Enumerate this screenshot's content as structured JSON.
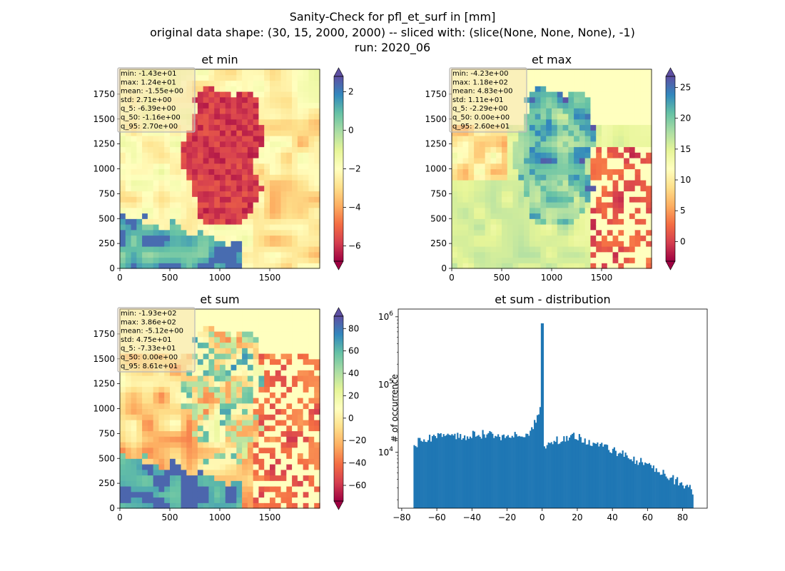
{
  "suptitle": {
    "line1": "Sanity-Check for pfl_et_surf in [mm]",
    "line2": "original data shape: (30, 15, 2000, 2000) -- sliced with: (slice(None, None, None), -1)",
    "line3": "run: 2020_06"
  },
  "chart_data": [
    {
      "type": "heatmap",
      "title": "et min",
      "xlim": [
        0,
        2000
      ],
      "ylim": [
        0,
        2000
      ],
      "x_ticks": [
        0,
        500,
        1000,
        1500
      ],
      "y_ticks": [
        0,
        250,
        500,
        750,
        1000,
        1250,
        1500,
        1750
      ],
      "colormap": "Spectral",
      "colorbar": {
        "vmin": -6.8,
        "vmax": 2.8,
        "ticks": [
          2,
          0,
          -2,
          -4,
          -6
        ],
        "extend": "both"
      },
      "stats": [
        "min: -1.43e+01",
        "max: 1.24e+01",
        "mean: -1.55e+00",
        "std: 2.71e+00",
        "q_5: -6.39e+00",
        "q_50: -1.16e+00",
        "q_95: 2.70e+00"
      ]
    },
    {
      "type": "heatmap",
      "title": "et max",
      "xlim": [
        0,
        2000
      ],
      "ylim": [
        0,
        2000
      ],
      "x_ticks": [
        0,
        500,
        1000,
        1500
      ],
      "y_ticks": [
        0,
        250,
        500,
        750,
        1000,
        1250,
        1500,
        1750
      ],
      "colormap": "Spectral",
      "colorbar": {
        "vmin": -3.2,
        "vmax": 26.8,
        "ticks": [
          25,
          20,
          15,
          10,
          5,
          0
        ],
        "extend": "both"
      },
      "stats": [
        "min: -4.23e+00",
        "max: 1.18e+02",
        "mean: 4.83e+00",
        "std: 1.11e+01",
        "q_5: -2.29e+00",
        "q_50: 0.00e+00",
        "q_95: 2.60e+01"
      ]
    },
    {
      "type": "heatmap",
      "title": "et sum",
      "xlim": [
        0,
        2000
      ],
      "ylim": [
        0,
        2000
      ],
      "x_ticks": [
        0,
        500,
        1000,
        1500
      ],
      "y_ticks": [
        0,
        250,
        500,
        750,
        1000,
        1250,
        1500,
        1750
      ],
      "colormap": "Spectral",
      "colorbar": {
        "vmin": -74,
        "vmax": 91,
        "ticks": [
          80,
          60,
          40,
          20,
          0,
          -20,
          -40,
          -60
        ],
        "extend": "both"
      },
      "stats": [
        "min: -1.93e+02",
        "max: 3.86e+02",
        "mean: -5.12e+00",
        "std: 4.75e+01",
        "q_5: -7.33e+01",
        "q_50: 0.00e+00",
        "q_95: 8.61e+01"
      ]
    },
    {
      "type": "bar",
      "title": "et sum - distribution",
      "ylabel": "# of occurrence",
      "yscale": "log",
      "xlim": [
        -82,
        94
      ],
      "ylim": [
        1500,
        1300000
      ],
      "x_ticks": [
        -80,
        -60,
        -40,
        -20,
        0,
        20,
        40,
        60,
        80
      ],
      "y_ticks": [
        {
          "value": 10000,
          "base": "10",
          "exp": "4"
        },
        {
          "value": 100000,
          "base": "10",
          "exp": "5"
        },
        {
          "value": 1000000,
          "base": "10",
          "exp": "6"
        }
      ],
      "color": "#1f77b4",
      "bin_range": [
        -73.3,
        86.1
      ],
      "profile": [
        [
          -73.3,
          12000
        ],
        [
          -71,
          14000
        ],
        [
          -68,
          15500
        ],
        [
          -64,
          16500
        ],
        [
          -60,
          17000
        ],
        [
          -55,
          17500
        ],
        [
          -50,
          17000
        ],
        [
          -45,
          17000
        ],
        [
          -40,
          19000
        ],
        [
          -35,
          18500
        ],
        [
          -30,
          19000
        ],
        [
          -25,
          18000
        ],
        [
          -20,
          17000
        ],
        [
          -15,
          17500
        ],
        [
          -10,
          18000
        ],
        [
          -6,
          22000
        ],
        [
          -3,
          32000
        ],
        [
          -1.2,
          40000
        ],
        [
          0,
          800000
        ],
        [
          1,
          13000
        ],
        [
          5,
          14500
        ],
        [
          10,
          15500
        ],
        [
          15,
          17000
        ],
        [
          20,
          17000
        ],
        [
          25,
          15000
        ],
        [
          30,
          13000
        ],
        [
          35,
          12000
        ],
        [
          40,
          11000
        ],
        [
          45,
          9500
        ],
        [
          50,
          8500
        ],
        [
          55,
          7500
        ],
        [
          60,
          6500
        ],
        [
          65,
          5500
        ],
        [
          70,
          4800
        ],
        [
          75,
          4000
        ],
        [
          80,
          3500
        ],
        [
          83,
          3000
        ],
        [
          86.1,
          2700
        ]
      ]
    }
  ]
}
